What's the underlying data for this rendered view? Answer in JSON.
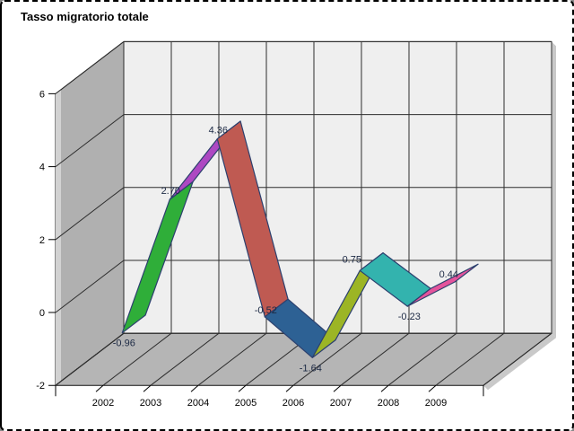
{
  "window": {
    "title": "Tasso migratorio totale"
  },
  "chart_data": {
    "type": "line",
    "style": "3d-ribbon",
    "title": "Tasso migratorio totale",
    "categories": [
      "2002",
      "2003",
      "2004",
      "2005",
      "2006",
      "2007",
      "2008",
      "2009"
    ],
    "series": [
      {
        "name": "Tasso migratorio totale",
        "values": [
          -0.96,
          2.7,
          4.36,
          -0.52,
          -1.64,
          0.75,
          -0.23,
          0.44
        ]
      }
    ],
    "data_labels": [
      "-0.96",
      "2.70",
      "4.36",
      "-0.52",
      "-1.64",
      "0.75",
      "-0.23",
      "0.44"
    ],
    "xlabel": "",
    "ylabel": "",
    "y_axis": {
      "range": [
        -2,
        6
      ],
      "ticks": [
        6,
        4,
        2,
        0,
        -2
      ],
      "tick_labels": [
        "6",
        "4",
        "2",
        "0",
        "-2"
      ]
    },
    "grid": true,
    "legend": false,
    "colors": {
      "segments": [
        "#2fae39",
        "#ad48c2",
        "#bf5a52",
        "#2d6194",
        "#9cb525",
        "#33b3ae",
        "#e4549c"
      ],
      "ribbon_outline": "#2c406e",
      "back_wall": "#efefef",
      "side_wall": "#b0b0b0",
      "side_wall_highlight": "#d2d2d2",
      "floor": "#b5b5b5",
      "gridline": "#2e2e2e",
      "edge": "#111111",
      "shadow": "#c9c9c9",
      "axis_text": "#000000",
      "data_label_text": "#1c2944",
      "background": "#ffffff",
      "border": "#000000"
    }
  }
}
